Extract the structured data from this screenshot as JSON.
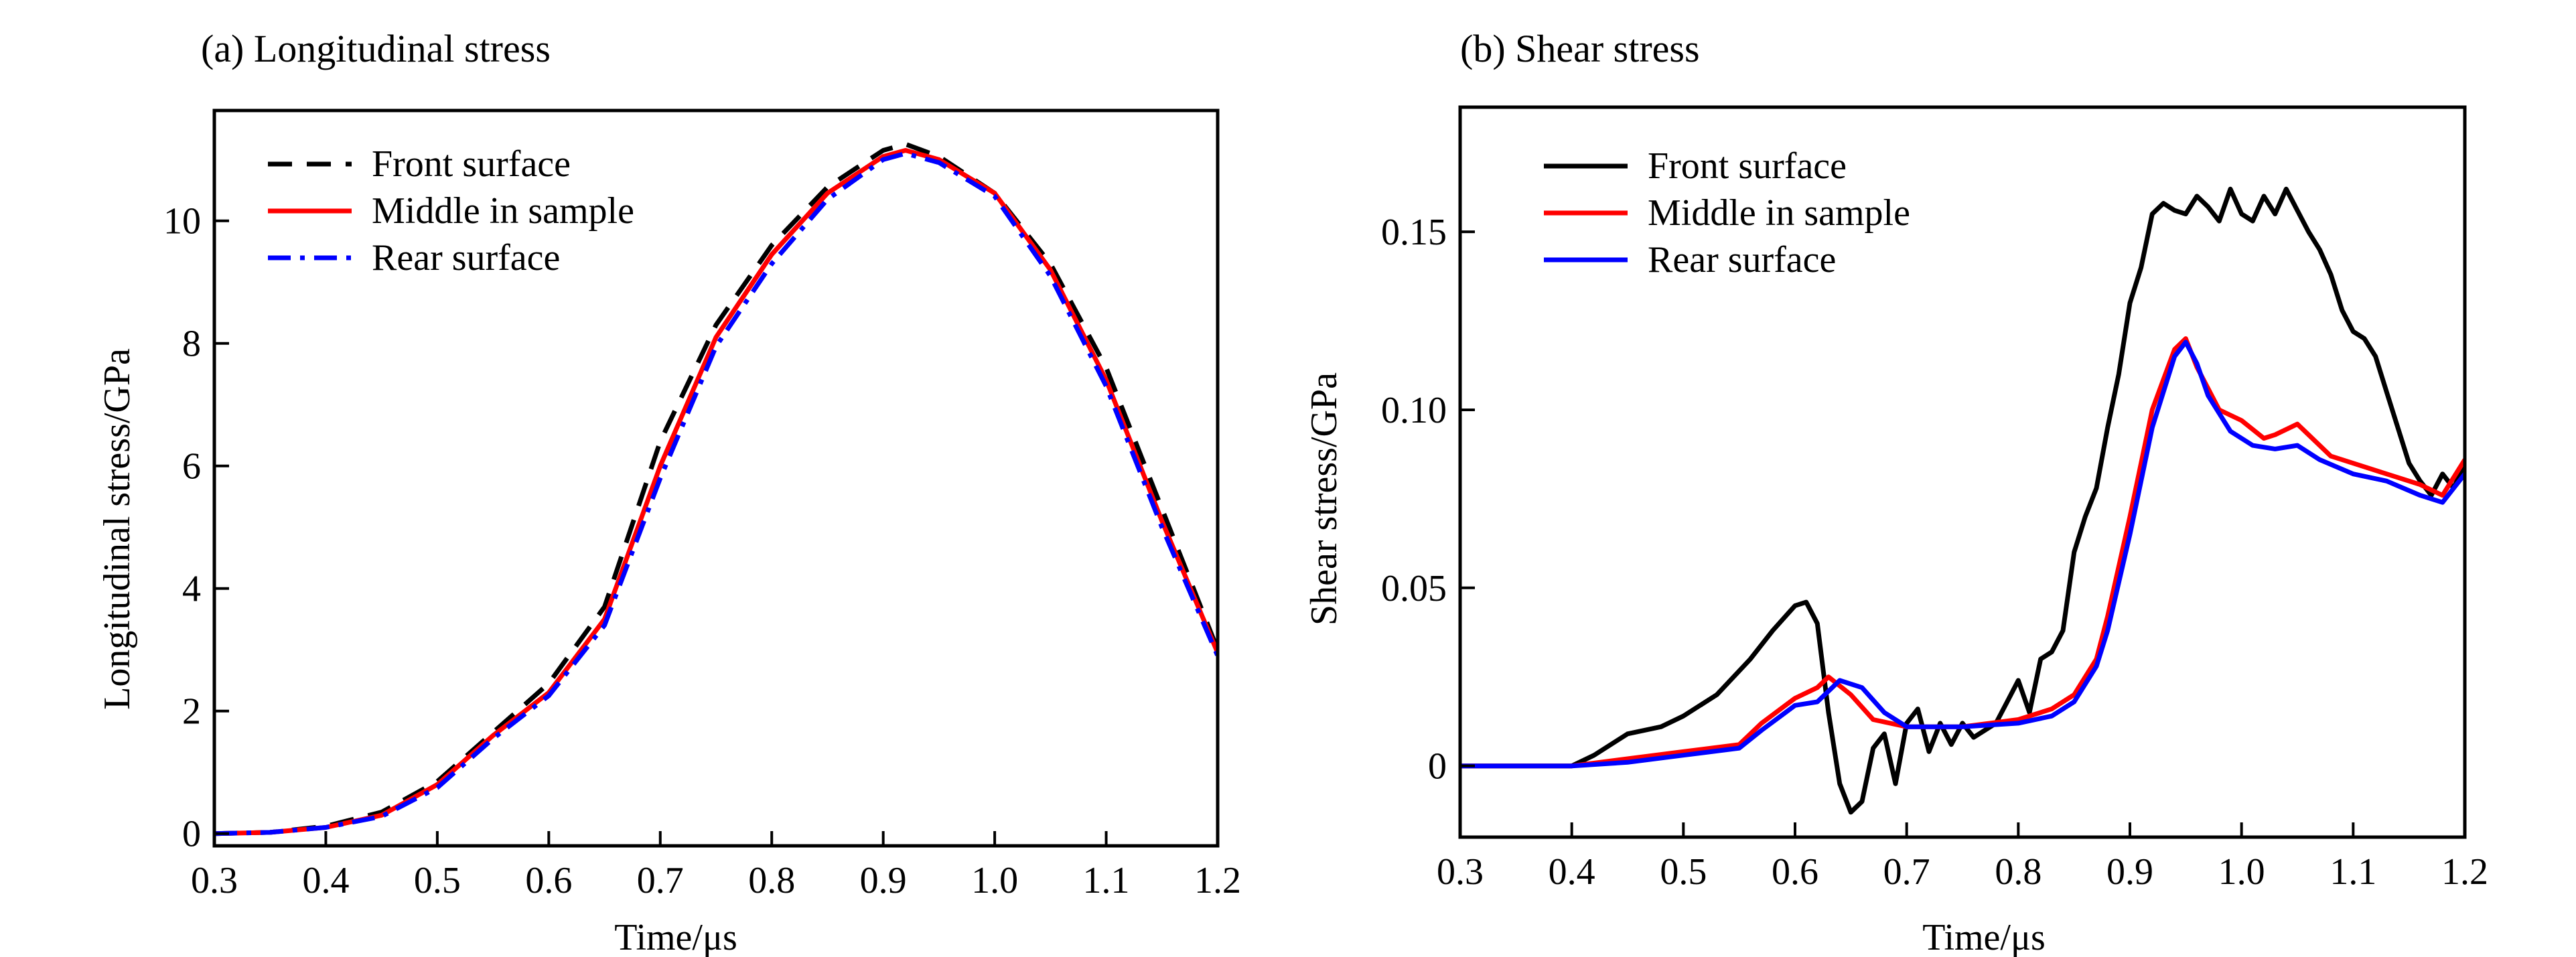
{
  "chart_data": [
    {
      "type": "line",
      "title": "(a) Longitudinal stress",
      "xlabel": "Time/μs",
      "ylabel": "Longitudinal stress/GPa",
      "xlim": [
        0.3,
        1.2
      ],
      "ylim": [
        -0.2,
        11.8
      ],
      "xticks": [
        "0.3",
        "0.4",
        "0.5",
        "0.6",
        "0.7",
        "0.8",
        "0.9",
        "1.0",
        "1.1",
        "1.2"
      ],
      "yticks": [
        "0",
        "2",
        "4",
        "6",
        "8",
        "10"
      ],
      "grid": false,
      "legend_position": "top-left",
      "series": [
        {
          "name": "Front surface",
          "color": "#000000",
          "style": "dashed",
          "x": [
            0.3,
            0.35,
            0.4,
            0.45,
            0.5,
            0.55,
            0.6,
            0.65,
            0.7,
            0.75,
            0.8,
            0.85,
            0.9,
            0.92,
            0.95,
            1.0,
            1.05,
            1.1,
            1.15,
            1.2
          ],
          "y": [
            0.0,
            0.02,
            0.12,
            0.35,
            0.85,
            1.65,
            2.45,
            3.7,
            6.4,
            8.3,
            9.6,
            10.55,
            11.15,
            11.25,
            11.05,
            10.45,
            9.3,
            7.6,
            5.3,
            3.0
          ]
        },
        {
          "name": "Middle in sample",
          "color": "#ff0000",
          "style": "solid",
          "x": [
            0.3,
            0.35,
            0.4,
            0.45,
            0.5,
            0.55,
            0.6,
            0.65,
            0.7,
            0.75,
            0.8,
            0.85,
            0.9,
            0.92,
            0.95,
            1.0,
            1.05,
            1.1,
            1.15,
            1.2
          ],
          "y": [
            0.0,
            0.02,
            0.1,
            0.3,
            0.8,
            1.6,
            2.3,
            3.5,
            6.0,
            8.1,
            9.45,
            10.45,
            11.05,
            11.15,
            11.0,
            10.45,
            9.2,
            7.4,
            5.1,
            2.95
          ]
        },
        {
          "name": "Rear surface",
          "color": "#0000ff",
          "style": "dashdot",
          "x": [
            0.3,
            0.35,
            0.4,
            0.45,
            0.5,
            0.55,
            0.6,
            0.65,
            0.7,
            0.75,
            0.8,
            0.85,
            0.9,
            0.92,
            0.95,
            1.0,
            1.05,
            1.1,
            1.15,
            1.2
          ],
          "y": [
            0.0,
            0.02,
            0.1,
            0.28,
            0.75,
            1.55,
            2.25,
            3.4,
            5.8,
            7.95,
            9.3,
            10.35,
            11.0,
            11.1,
            10.95,
            10.4,
            9.1,
            7.3,
            5.0,
            2.9
          ]
        }
      ]
    },
    {
      "type": "line",
      "title": "(b) Shear stress",
      "xlabel": "Time/μs",
      "ylabel": "Shear stress/GPa",
      "xlim": [
        0.3,
        1.2
      ],
      "ylim": [
        -0.02,
        0.185
      ],
      "xticks": [
        "0.3",
        "0.4",
        "0.5",
        "0.6",
        "0.7",
        "0.8",
        "0.9",
        "1.0",
        "1.1",
        "1.2"
      ],
      "yticks": [
        "0",
        "0.05",
        "0.10",
        "0.15"
      ],
      "grid": false,
      "legend_position": "top-left",
      "series": [
        {
          "name": "Front surface",
          "color": "#000000",
          "style": "solid",
          "x": [
            0.3,
            0.4,
            0.42,
            0.45,
            0.48,
            0.5,
            0.53,
            0.56,
            0.58,
            0.6,
            0.61,
            0.62,
            0.63,
            0.64,
            0.65,
            0.66,
            0.67,
            0.68,
            0.69,
            0.7,
            0.71,
            0.72,
            0.73,
            0.74,
            0.75,
            0.76,
            0.77,
            0.78,
            0.79,
            0.8,
            0.81,
            0.82,
            0.83,
            0.84,
            0.85,
            0.86,
            0.87,
            0.88,
            0.89,
            0.9,
            0.91,
            0.92,
            0.93,
            0.94,
            0.95,
            0.96,
            0.97,
            0.98,
            0.99,
            1.0,
            1.01,
            1.02,
            1.03,
            1.04,
            1.05,
            1.06,
            1.07,
            1.08,
            1.09,
            1.1,
            1.11,
            1.12,
            1.13,
            1.14,
            1.15,
            1.16,
            1.17,
            1.18,
            1.19,
            1.2
          ],
          "y": [
            0.0,
            0.0,
            0.003,
            0.009,
            0.011,
            0.014,
            0.02,
            0.03,
            0.038,
            0.045,
            0.046,
            0.04,
            0.015,
            -0.005,
            -0.013,
            -0.01,
            0.005,
            0.009,
            -0.005,
            0.012,
            0.016,
            0.004,
            0.012,
            0.006,
            0.012,
            0.008,
            0.01,
            0.012,
            0.018,
            0.024,
            0.015,
            0.03,
            0.032,
            0.038,
            0.06,
            0.07,
            0.078,
            0.095,
            0.11,
            0.13,
            0.14,
            0.155,
            0.158,
            0.156,
            0.155,
            0.16,
            0.157,
            0.153,
            0.162,
            0.155,
            0.153,
            0.16,
            0.155,
            0.162,
            0.156,
            0.15,
            0.145,
            0.138,
            0.128,
            0.122,
            0.12,
            0.115,
            0.105,
            0.095,
            0.085,
            0.08,
            0.076,
            0.082,
            0.078,
            0.085
          ]
        },
        {
          "name": "Middle in sample",
          "color": "#ff0000",
          "style": "solid",
          "x": [
            0.3,
            0.4,
            0.45,
            0.5,
            0.55,
            0.57,
            0.6,
            0.62,
            0.63,
            0.65,
            0.67,
            0.7,
            0.75,
            0.8,
            0.83,
            0.85,
            0.87,
            0.88,
            0.9,
            0.92,
            0.94,
            0.95,
            0.96,
            0.98,
            1.0,
            1.02,
            1.03,
            1.05,
            1.06,
            1.08,
            1.1,
            1.13,
            1.16,
            1.18,
            1.2
          ],
          "y": [
            0.0,
            0.0,
            0.002,
            0.004,
            0.006,
            0.012,
            0.019,
            0.022,
            0.025,
            0.02,
            0.013,
            0.011,
            0.011,
            0.013,
            0.016,
            0.02,
            0.03,
            0.042,
            0.07,
            0.1,
            0.117,
            0.12,
            0.112,
            0.1,
            0.097,
            0.092,
            0.093,
            0.096,
            0.093,
            0.087,
            0.085,
            0.082,
            0.079,
            0.076,
            0.086
          ]
        },
        {
          "name": "Rear surface",
          "color": "#0000ff",
          "style": "solid",
          "x": [
            0.3,
            0.4,
            0.45,
            0.5,
            0.55,
            0.57,
            0.6,
            0.62,
            0.64,
            0.66,
            0.68,
            0.7,
            0.75,
            0.8,
            0.83,
            0.85,
            0.87,
            0.88,
            0.9,
            0.92,
            0.94,
            0.95,
            0.96,
            0.97,
            0.99,
            1.01,
            1.03,
            1.05,
            1.07,
            1.1,
            1.13,
            1.16,
            1.18,
            1.2
          ],
          "y": [
            0.0,
            0.0,
            0.001,
            0.003,
            0.005,
            0.01,
            0.017,
            0.018,
            0.024,
            0.022,
            0.015,
            0.011,
            0.011,
            0.012,
            0.014,
            0.018,
            0.028,
            0.038,
            0.065,
            0.095,
            0.115,
            0.119,
            0.113,
            0.104,
            0.094,
            0.09,
            0.089,
            0.09,
            0.086,
            0.082,
            0.08,
            0.076,
            0.074,
            0.082
          ]
        }
      ]
    }
  ]
}
